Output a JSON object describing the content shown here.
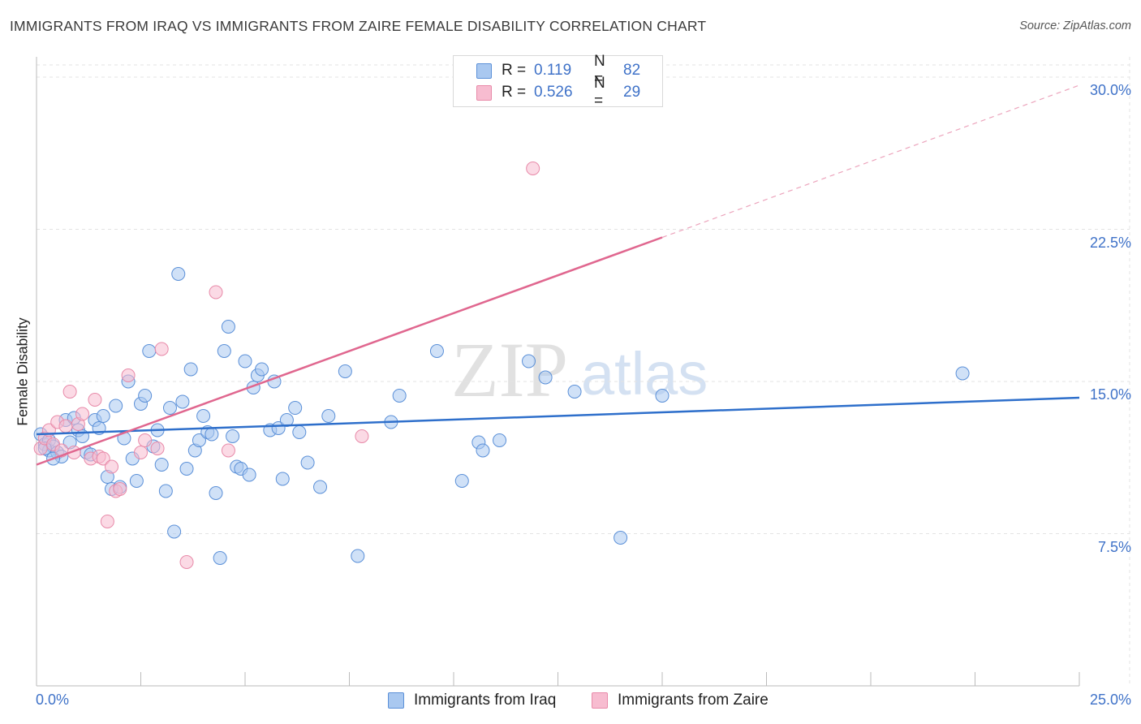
{
  "header": {
    "title": "IMMIGRANTS FROM IRAQ VS IMMIGRANTS FROM ZAIRE FEMALE DISABILITY CORRELATION CHART",
    "source": "Source: ZipAtlas.com"
  },
  "watermark": {
    "zip": "ZIP",
    "atlas": "atlas"
  },
  "legend": {
    "iraq": {
      "r_label": "R =",
      "r_value": "0.119",
      "n_label": "N =",
      "n_value": "82"
    },
    "zaire": {
      "r_label": "R =",
      "r_value": "0.526",
      "n_label": "N =",
      "n_value": "29"
    }
  },
  "colors": {
    "iraq_fill": "#a9c8f0",
    "iraq_stroke": "#5b90d8",
    "iraq_line": "#2e6fcb",
    "zaire_fill": "#f7bcd0",
    "zaire_stroke": "#e88aa9",
    "zaire_line": "#e0678f",
    "tick_text": "#3f72c8",
    "grid": "#e3e3e3"
  },
  "chart_data": {
    "type": "scatter",
    "title": "IMMIGRANTS FROM IRAQ VS IMMIGRANTS FROM ZAIRE FEMALE DISABILITY CORRELATION CHART",
    "xlabel": "",
    "ylabel": "Female Disability",
    "xlim": [
      0,
      25
    ],
    "ylim": [
      0,
      31
    ],
    "x_tick_labels": [
      "0.0%",
      "25.0%"
    ],
    "y_ticks": [
      7.5,
      15.0,
      22.5,
      30.0
    ],
    "y_tick_labels": [
      "7.5%",
      "15.0%",
      "22.5%",
      "30.0%"
    ],
    "grid": true,
    "legend_position": "bottom",
    "series": [
      {
        "name": "Immigrants from Iraq",
        "color": "#a9c8f0",
        "points": [
          [
            0.1,
            12.4
          ],
          [
            0.2,
            11.9
          ],
          [
            0.3,
            11.6
          ],
          [
            0.3,
            12.1
          ],
          [
            0.4,
            11.8
          ],
          [
            0.5,
            11.5
          ],
          [
            0.6,
            11.3
          ],
          [
            0.7,
            13.1
          ],
          [
            0.8,
            12.0
          ],
          [
            0.9,
            13.2
          ],
          [
            1.0,
            12.6
          ],
          [
            1.1,
            12.3
          ],
          [
            1.2,
            11.5
          ],
          [
            1.3,
            11.4
          ],
          [
            1.4,
            13.1
          ],
          [
            1.5,
            12.7
          ],
          [
            1.6,
            13.3
          ],
          [
            1.7,
            10.3
          ],
          [
            1.8,
            9.7
          ],
          [
            1.9,
            13.8
          ],
          [
            2.0,
            9.8
          ],
          [
            2.1,
            12.2
          ],
          [
            2.2,
            15.0
          ],
          [
            2.3,
            11.2
          ],
          [
            2.4,
            10.1
          ],
          [
            2.5,
            13.9
          ],
          [
            2.6,
            14.3
          ],
          [
            2.7,
            16.5
          ],
          [
            2.8,
            11.8
          ],
          [
            2.9,
            12.6
          ],
          [
            3.0,
            10.9
          ],
          [
            3.1,
            9.6
          ],
          [
            3.2,
            13.7
          ],
          [
            3.3,
            7.6
          ],
          [
            3.4,
            20.3
          ],
          [
            3.5,
            14.0
          ],
          [
            3.6,
            10.7
          ],
          [
            3.7,
            15.6
          ],
          [
            3.8,
            11.6
          ],
          [
            3.9,
            12.1
          ],
          [
            4.0,
            13.3
          ],
          [
            4.1,
            12.5
          ],
          [
            4.2,
            12.4
          ],
          [
            4.3,
            9.5
          ],
          [
            4.4,
            6.3
          ],
          [
            4.5,
            16.5
          ],
          [
            4.6,
            17.7
          ],
          [
            4.7,
            12.3
          ],
          [
            4.8,
            10.8
          ],
          [
            4.9,
            10.7
          ],
          [
            5.0,
            16.0
          ],
          [
            5.1,
            10.4
          ],
          [
            5.2,
            14.7
          ],
          [
            5.3,
            15.3
          ],
          [
            5.4,
            15.6
          ],
          [
            5.6,
            12.6
          ],
          [
            5.7,
            15.0
          ],
          [
            5.8,
            12.7
          ],
          [
            5.9,
            10.2
          ],
          [
            6.0,
            13.1
          ],
          [
            6.2,
            13.7
          ],
          [
            6.3,
            12.5
          ],
          [
            6.5,
            11.0
          ],
          [
            6.8,
            9.8
          ],
          [
            7.0,
            13.3
          ],
          [
            7.4,
            15.5
          ],
          [
            7.7,
            6.4
          ],
          [
            8.5,
            13.0
          ],
          [
            8.7,
            14.3
          ],
          [
            9.6,
            16.5
          ],
          [
            10.2,
            10.1
          ],
          [
            10.6,
            12.0
          ],
          [
            10.7,
            11.6
          ],
          [
            11.1,
            12.1
          ],
          [
            11.8,
            16.0
          ],
          [
            12.2,
            15.2
          ],
          [
            12.9,
            14.5
          ],
          [
            14.0,
            7.3
          ],
          [
            15.0,
            14.3
          ],
          [
            22.2,
            15.4
          ],
          [
            0.2,
            11.7
          ],
          [
            0.4,
            11.2
          ]
        ]
      },
      {
        "name": "Immigrants from Zaire",
        "color": "#f7bcd0",
        "points": [
          [
            0.1,
            11.7
          ],
          [
            0.2,
            12.2
          ],
          [
            0.3,
            12.6
          ],
          [
            0.4,
            11.9
          ],
          [
            0.5,
            13.0
          ],
          [
            0.6,
            11.6
          ],
          [
            0.7,
            12.8
          ],
          [
            0.8,
            14.5
          ],
          [
            0.9,
            11.5
          ],
          [
            1.0,
            12.9
          ],
          [
            1.1,
            13.4
          ],
          [
            1.3,
            11.2
          ],
          [
            1.4,
            14.1
          ],
          [
            1.5,
            11.3
          ],
          [
            1.6,
            11.2
          ],
          [
            1.7,
            8.1
          ],
          [
            1.8,
            10.8
          ],
          [
            1.9,
            9.6
          ],
          [
            2.0,
            9.7
          ],
          [
            2.2,
            15.3
          ],
          [
            2.5,
            11.5
          ],
          [
            2.6,
            12.1
          ],
          [
            2.9,
            11.7
          ],
          [
            3.0,
            16.6
          ],
          [
            3.6,
            6.1
          ],
          [
            4.3,
            19.4
          ],
          [
            4.6,
            11.6
          ],
          [
            7.8,
            12.3
          ],
          [
            11.9,
            25.5
          ]
        ]
      }
    ],
    "trend_lines": [
      {
        "series": "Immigrants from Iraq",
        "x": [
          0,
          25
        ],
        "y": [
          12.4,
          14.2
        ],
        "dash_beyond_x": null
      },
      {
        "series": "Immigrants from Zaire",
        "x": [
          0,
          15
        ],
        "y": [
          10.9,
          22.1
        ],
        "dashed_extension_to": [
          25,
          29.6
        ]
      }
    ]
  },
  "bottom_legend": {
    "iraq": "Immigrants from Iraq",
    "zaire": "Immigrants from Zaire"
  }
}
